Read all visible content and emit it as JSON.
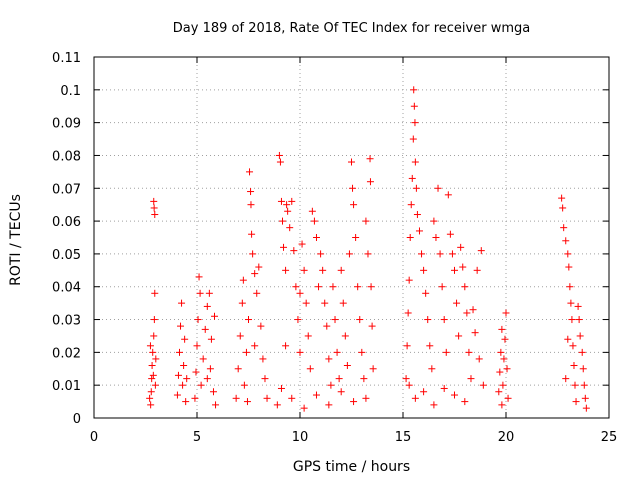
{
  "chart_data": {
    "type": "scatter",
    "title": "Day 189 of 2018, Rate Of TEC Index for receiver wmga",
    "xlabel": "GPS time / hours",
    "ylabel": "ROTI / TECUs",
    "xlim": [
      0,
      25
    ],
    "ylim": [
      0,
      0.11
    ],
    "x_ticks": [
      0,
      5,
      10,
      15,
      20,
      25
    ],
    "y_ticks": [
      0,
      0.01,
      0.02,
      0.03,
      0.04,
      0.05,
      0.06,
      0.07,
      0.08,
      0.09,
      0.1,
      0.11
    ],
    "x_tick_labels": [
      "0",
      "5",
      "10",
      "15",
      "20",
      "25"
    ],
    "y_tick_labels": [
      "0",
      "0.01",
      "0.02",
      "0.03",
      "0.04",
      "0.05",
      "0.06",
      "0.07",
      "0.08",
      "0.09",
      "0.1",
      "0.11"
    ],
    "grid": true,
    "legend": "none",
    "marker": "plus",
    "color": "#ff0000",
    "series": [
      {
        "points": [
          [
            2.75,
            0.004
          ],
          [
            2.78,
            0.008
          ],
          [
            2.8,
            0.012
          ],
          [
            2.82,
            0.016
          ],
          [
            2.85,
            0.02
          ],
          [
            2.88,
            0.013
          ],
          [
            2.9,
            0.025
          ],
          [
            2.93,
            0.03
          ],
          [
            2.95,
            0.038
          ],
          [
            2.9,
            0.066
          ],
          [
            2.92,
            0.064
          ],
          [
            2.95,
            0.062
          ],
          [
            2.98,
            0.01
          ],
          [
            3.0,
            0.018
          ],
          [
            2.7,
            0.006
          ],
          [
            2.74,
            0.022
          ],
          [
            4.05,
            0.007
          ],
          [
            4.1,
            0.013
          ],
          [
            4.15,
            0.02
          ],
          [
            4.2,
            0.028
          ],
          [
            4.25,
            0.035
          ],
          [
            4.3,
            0.01
          ],
          [
            4.35,
            0.016
          ],
          [
            4.4,
            0.024
          ],
          [
            4.45,
            0.005
          ],
          [
            4.5,
            0.012
          ],
          [
            4.9,
            0.006
          ],
          [
            4.95,
            0.014
          ],
          [
            5.0,
            0.022
          ],
          [
            5.05,
            0.03
          ],
          [
            5.1,
            0.043
          ],
          [
            5.15,
            0.038
          ],
          [
            5.2,
            0.01
          ],
          [
            5.3,
            0.018
          ],
          [
            5.4,
            0.027
          ],
          [
            5.5,
            0.034
          ],
          [
            5.6,
            0.038
          ],
          [
            5.65,
            0.015
          ],
          [
            5.7,
            0.024
          ],
          [
            5.8,
            0.008
          ],
          [
            5.85,
            0.031
          ],
          [
            5.9,
            0.004
          ],
          [
            5.5,
            0.012
          ],
          [
            6.9,
            0.006
          ],
          [
            7.0,
            0.015
          ],
          [
            7.1,
            0.025
          ],
          [
            7.2,
            0.035
          ],
          [
            7.25,
            0.042
          ],
          [
            7.3,
            0.01
          ],
          [
            7.4,
            0.02
          ],
          [
            7.5,
            0.03
          ],
          [
            7.55,
            0.075
          ],
          [
            7.6,
            0.069
          ],
          [
            7.62,
            0.065
          ],
          [
            7.65,
            0.056
          ],
          [
            7.7,
            0.05
          ],
          [
            7.8,
            0.044
          ],
          [
            7.9,
            0.038
          ],
          [
            8.0,
            0.046
          ],
          [
            8.1,
            0.028
          ],
          [
            8.2,
            0.018
          ],
          [
            8.3,
            0.012
          ],
          [
            8.4,
            0.006
          ],
          [
            7.8,
            0.022
          ],
          [
            7.45,
            0.005
          ],
          [
            9.0,
            0.08
          ],
          [
            9.05,
            0.078
          ],
          [
            9.1,
            0.066
          ],
          [
            9.15,
            0.06
          ],
          [
            9.2,
            0.052
          ],
          [
            9.3,
            0.045
          ],
          [
            9.35,
            0.065
          ],
          [
            9.4,
            0.063
          ],
          [
            9.5,
            0.058
          ],
          [
            9.6,
            0.066
          ],
          [
            9.7,
            0.051
          ],
          [
            9.8,
            0.04
          ],
          [
            9.9,
            0.03
          ],
          [
            10.0,
            0.02
          ],
          [
            10.1,
            0.053
          ],
          [
            10.2,
            0.045
          ],
          [
            10.3,
            0.035
          ],
          [
            10.4,
            0.025
          ],
          [
            10.5,
            0.015
          ],
          [
            10.6,
            0.063
          ],
          [
            10.7,
            0.06
          ],
          [
            10.8,
            0.055
          ],
          [
            10.9,
            0.04
          ],
          [
            11.0,
            0.05
          ],
          [
            11.1,
            0.045
          ],
          [
            11.2,
            0.035
          ],
          [
            11.3,
            0.028
          ],
          [
            11.4,
            0.018
          ],
          [
            11.5,
            0.01
          ],
          [
            11.6,
            0.04
          ],
          [
            11.7,
            0.03
          ],
          [
            11.8,
            0.02
          ],
          [
            11.9,
            0.012
          ],
          [
            12.0,
            0.045
          ],
          [
            12.1,
            0.035
          ],
          [
            12.2,
            0.025
          ],
          [
            12.3,
            0.016
          ],
          [
            12.4,
            0.05
          ],
          [
            12.5,
            0.078
          ],
          [
            12.55,
            0.07
          ],
          [
            12.6,
            0.065
          ],
          [
            12.7,
            0.055
          ],
          [
            12.8,
            0.04
          ],
          [
            12.9,
            0.03
          ],
          [
            13.0,
            0.02
          ],
          [
            13.1,
            0.012
          ],
          [
            13.2,
            0.06
          ],
          [
            13.3,
            0.05
          ],
          [
            13.4,
            0.079
          ],
          [
            13.42,
            0.072
          ],
          [
            13.45,
            0.04
          ],
          [
            13.5,
            0.028
          ],
          [
            13.55,
            0.015
          ],
          [
            8.9,
            0.004
          ],
          [
            9.1,
            0.009
          ],
          [
            9.6,
            0.006
          ],
          [
            10.2,
            0.003
          ],
          [
            10.8,
            0.007
          ],
          [
            11.4,
            0.004
          ],
          [
            12.0,
            0.008
          ],
          [
            12.6,
            0.005
          ],
          [
            13.2,
            0.006
          ],
          [
            9.3,
            0.022
          ],
          [
            10.0,
            0.038
          ],
          [
            15.15,
            0.012
          ],
          [
            15.2,
            0.022
          ],
          [
            15.25,
            0.032
          ],
          [
            15.3,
            0.042
          ],
          [
            15.35,
            0.055
          ],
          [
            15.4,
            0.065
          ],
          [
            15.45,
            0.073
          ],
          [
            15.5,
            0.085
          ],
          [
            15.52,
            0.1
          ],
          [
            15.55,
            0.095
          ],
          [
            15.58,
            0.09
          ],
          [
            15.6,
            0.078
          ],
          [
            15.65,
            0.07
          ],
          [
            15.7,
            0.062
          ],
          [
            15.8,
            0.057
          ],
          [
            15.9,
            0.05
          ],
          [
            16.0,
            0.045
          ],
          [
            16.1,
            0.038
          ],
          [
            16.2,
            0.03
          ],
          [
            16.3,
            0.022
          ],
          [
            16.4,
            0.015
          ],
          [
            16.5,
            0.06
          ],
          [
            16.6,
            0.055
          ],
          [
            16.7,
            0.07
          ],
          [
            16.8,
            0.05
          ],
          [
            16.9,
            0.04
          ],
          [
            17.0,
            0.03
          ],
          [
            17.1,
            0.02
          ],
          [
            17.2,
            0.068
          ],
          [
            17.3,
            0.056
          ],
          [
            17.4,
            0.05
          ],
          [
            17.5,
            0.045
          ],
          [
            17.6,
            0.035
          ],
          [
            17.7,
            0.025
          ],
          [
            17.8,
            0.052
          ],
          [
            17.9,
            0.046
          ],
          [
            18.0,
            0.04
          ],
          [
            18.1,
            0.032
          ],
          [
            18.2,
            0.02
          ],
          [
            18.3,
            0.012
          ],
          [
            18.4,
            0.033
          ],
          [
            18.5,
            0.026
          ],
          [
            18.6,
            0.045
          ],
          [
            18.7,
            0.018
          ],
          [
            18.8,
            0.051
          ],
          [
            18.9,
            0.01
          ],
          [
            15.6,
            0.006
          ],
          [
            16.0,
            0.008
          ],
          [
            16.5,
            0.004
          ],
          [
            17.0,
            0.009
          ],
          [
            17.5,
            0.007
          ],
          [
            18.0,
            0.005
          ],
          [
            15.3,
            0.01
          ],
          [
            19.65,
            0.008
          ],
          [
            19.7,
            0.014
          ],
          [
            19.75,
            0.02
          ],
          [
            19.8,
            0.027
          ],
          [
            19.85,
            0.01
          ],
          [
            19.9,
            0.018
          ],
          [
            19.95,
            0.024
          ],
          [
            20.0,
            0.032
          ],
          [
            20.05,
            0.015
          ],
          [
            20.1,
            0.006
          ],
          [
            19.8,
            0.004
          ],
          [
            22.7,
            0.067
          ],
          [
            22.75,
            0.064
          ],
          [
            22.8,
            0.058
          ],
          [
            22.9,
            0.054
          ],
          [
            23.0,
            0.05
          ],
          [
            23.05,
            0.046
          ],
          [
            23.1,
            0.04
          ],
          [
            23.15,
            0.035
          ],
          [
            23.2,
            0.03
          ],
          [
            23.25,
            0.022
          ],
          [
            23.3,
            0.016
          ],
          [
            23.35,
            0.01
          ],
          [
            23.4,
            0.005
          ],
          [
            23.5,
            0.034
          ],
          [
            23.55,
            0.03
          ],
          [
            23.6,
            0.025
          ],
          [
            23.7,
            0.02
          ],
          [
            23.75,
            0.015
          ],
          [
            23.8,
            0.01
          ],
          [
            23.85,
            0.006
          ],
          [
            23.9,
            0.003
          ],
          [
            22.9,
            0.012
          ],
          [
            23.0,
            0.024
          ]
        ]
      }
    ]
  }
}
